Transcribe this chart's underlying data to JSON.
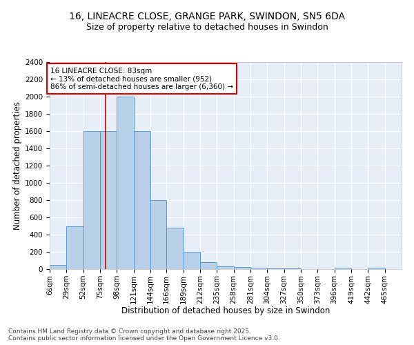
{
  "title": "16, LINEACRE CLOSE, GRANGE PARK, SWINDON, SN5 6DA",
  "subtitle": "Size of property relative to detached houses in Swindon",
  "xlabel": "Distribution of detached houses by size in Swindon",
  "ylabel": "Number of detached properties",
  "bar_color": "#b8d0e8",
  "bar_edge_color": "#5b9bd5",
  "bg_color": "#e8eef8",
  "grid_color": "#ffffff",
  "bins": [
    6,
    29,
    52,
    75,
    98,
    121,
    144,
    166,
    189,
    212,
    235,
    258,
    281,
    304,
    327,
    350,
    373,
    396,
    419,
    442,
    465
  ],
  "heights": [
    50,
    500,
    1600,
    1600,
    2000,
    1600,
    800,
    480,
    200,
    80,
    35,
    25,
    20,
    10,
    5,
    0,
    0,
    20,
    0,
    20,
    0
  ],
  "red_line_x": 83,
  "annotation_title": "16 LINEACRE CLOSE: 83sqm",
  "annotation_line2": "← 13% of detached houses are smaller (952)",
  "annotation_line3": "86% of semi-detached houses are larger (6,360) →",
  "annotation_color": "#cc0000",
  "ylim": [
    0,
    2400
  ],
  "yticks": [
    0,
    200,
    400,
    600,
    800,
    1000,
    1200,
    1400,
    1600,
    1800,
    2000,
    2200,
    2400
  ],
  "footer_line1": "Contains HM Land Registry data © Crown copyright and database right 2025.",
  "footer_line2": "Contains public sector information licensed under the Open Government Licence v3.0.",
  "title_fontsize": 10,
  "subtitle_fontsize": 9,
  "axis_label_fontsize": 8.5,
  "tick_fontsize": 7.5,
  "annotation_fontsize": 7.5,
  "footer_fontsize": 6.5
}
